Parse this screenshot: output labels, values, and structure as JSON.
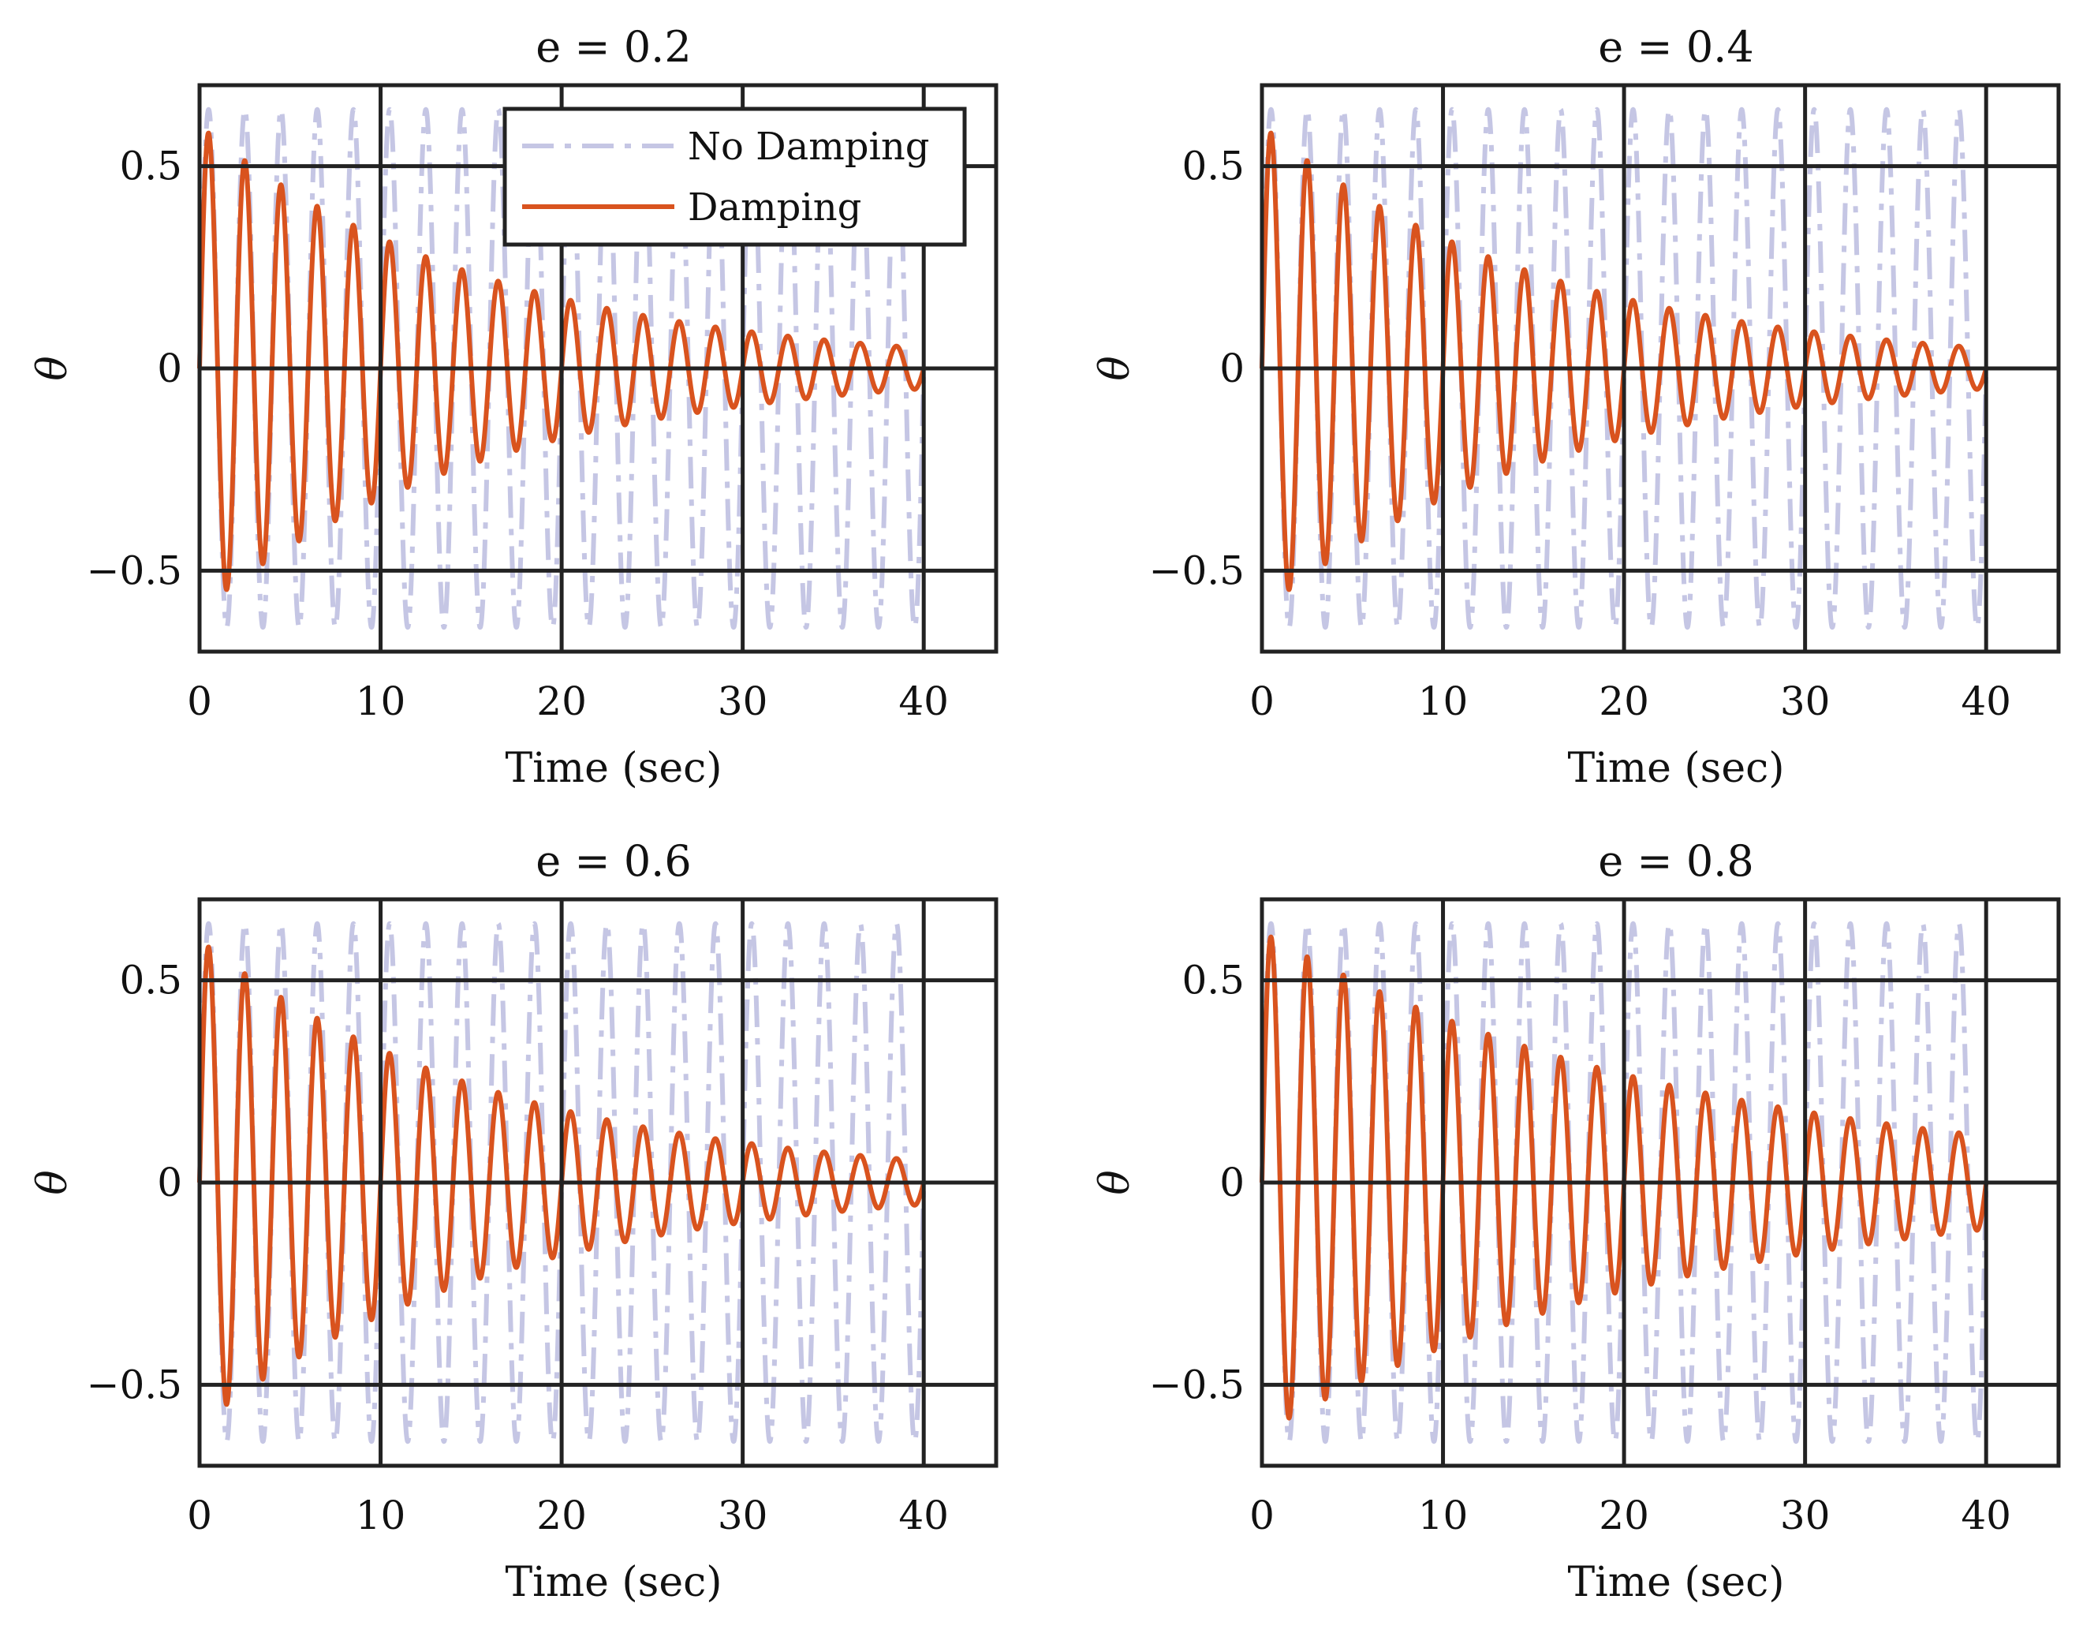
{
  "chart_data": [
    {
      "type": "line",
      "title": "e = 0.2",
      "e": 0.2,
      "xlabel": "Time (sec)",
      "ylabel": "θ",
      "xlim": [
        0,
        44
      ],
      "ylim": [
        -0.7,
        0.7
      ],
      "xticks": [
        0,
        10,
        20,
        30,
        40
      ],
      "yticks": [
        -0.5,
        0,
        0.5
      ],
      "xtick_labels": [
        "0",
        "10",
        "20",
        "30",
        "40"
      ],
      "ytick_labels": [
        "−0.5",
        "0",
        "0.5"
      ],
      "grid": true,
      "legend": {
        "position": "top-right",
        "entries": [
          "No Damping",
          "Damping"
        ]
      },
      "series": [
        {
          "name": "No Damping",
          "style": "dash-dot",
          "color": "#c5c6e4",
          "amplitude": 0.64,
          "period": 2.0,
          "t_end": 40
        },
        {
          "name": "Damping",
          "style": "solid",
          "color": "#d9531e",
          "amplitude": 0.6,
          "decay": 0.062,
          "period": 2.0,
          "t_end": 40
        }
      ]
    },
    {
      "type": "line",
      "title": "e = 0.4",
      "e": 0.4,
      "xlabel": "Time (sec)",
      "ylabel": "θ",
      "xlim": [
        0,
        44
      ],
      "ylim": [
        -0.7,
        0.7
      ],
      "xticks": [
        0,
        10,
        20,
        30,
        40
      ],
      "yticks": [
        -0.5,
        0,
        0.5
      ],
      "xtick_labels": [
        "0",
        "10",
        "20",
        "30",
        "40"
      ],
      "ytick_labels": [
        "−0.5",
        "0",
        "0.5"
      ],
      "grid": true,
      "series": [
        {
          "name": "No Damping",
          "style": "dash-dot",
          "color": "#c5c6e4",
          "amplitude": 0.64,
          "period": 2.0,
          "t_end": 40
        },
        {
          "name": "Damping",
          "style": "solid",
          "color": "#d9531e",
          "amplitude": 0.6,
          "decay": 0.062,
          "period": 2.0,
          "t_end": 40
        }
      ]
    },
    {
      "type": "line",
      "title": "e = 0.6",
      "e": 0.6,
      "xlabel": "Time (sec)",
      "ylabel": "θ",
      "xlim": [
        0,
        44
      ],
      "ylim": [
        -0.7,
        0.7
      ],
      "xticks": [
        0,
        10,
        20,
        30,
        40
      ],
      "yticks": [
        -0.5,
        0,
        0.5
      ],
      "xtick_labels": [
        "0",
        "10",
        "20",
        "30",
        "40"
      ],
      "ytick_labels": [
        "−0.5",
        "0",
        "0.5"
      ],
      "grid": true,
      "series": [
        {
          "name": "No Damping",
          "style": "dash-dot",
          "color": "#c5c6e4",
          "amplitude": 0.64,
          "period": 2.0,
          "t_end": 40
        },
        {
          "name": "Damping",
          "style": "solid",
          "color": "#d9531e",
          "amplitude": 0.6,
          "decay": 0.06,
          "period": 2.0,
          "t_end": 40
        }
      ]
    },
    {
      "type": "line",
      "title": "e = 0.8",
      "e": 0.8,
      "xlabel": "Time (sec)",
      "ylabel": "θ",
      "xlim": [
        0,
        44
      ],
      "ylim": [
        -0.7,
        0.7
      ],
      "xticks": [
        0,
        10,
        20,
        30,
        40
      ],
      "yticks": [
        -0.5,
        0,
        0.5
      ],
      "xtick_labels": [
        "0",
        "10",
        "20",
        "30",
        "40"
      ],
      "ytick_labels": [
        "−0.5",
        "0",
        "0.5"
      ],
      "grid": true,
      "series": [
        {
          "name": "No Damping",
          "style": "dash-dot",
          "color": "#c5c6e4",
          "amplitude": 0.64,
          "period": 2.0,
          "t_end": 40
        },
        {
          "name": "Damping",
          "style": "solid",
          "color": "#d9531e",
          "amplitude": 0.62,
          "decay": 0.042,
          "period": 2.0,
          "t_end": 40
        }
      ]
    }
  ]
}
